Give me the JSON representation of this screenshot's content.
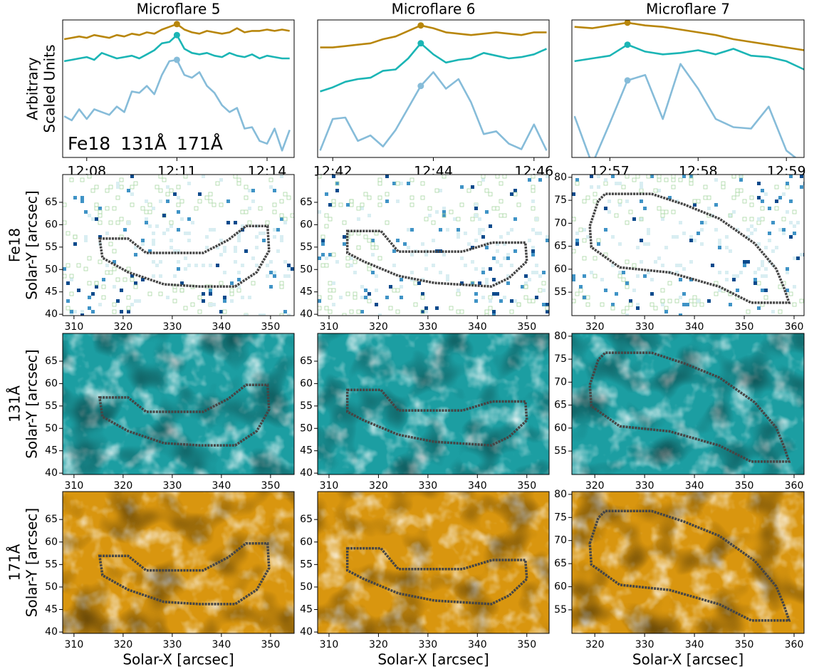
{
  "chart_data": [
    {
      "type": "line",
      "title": "Microflare 5",
      "ylabel": [
        "Arbitrary",
        "Scaled Units"
      ],
      "legend": true,
      "x": [
        727.25,
        727.5,
        727.75,
        728,
        728.25,
        728.5,
        728.75,
        729,
        729.25,
        729.5,
        729.75,
        730,
        730.25,
        730.5,
        730.75,
        731,
        731.25,
        731.5,
        731.75,
        732,
        732.25,
        732.5,
        732.75,
        733,
        733.25,
        733.5,
        733.75,
        734,
        734.25,
        734.5,
        734.75
      ],
      "xlim": [
        727.2,
        734.9
      ],
      "ylim": [
        0,
        1
      ],
      "xticks": [
        {
          "value": 728,
          "label": "12:08"
        },
        {
          "value": 731,
          "label": "12:11"
        },
        {
          "value": 734,
          "label": "12:14"
        }
      ],
      "series": [
        {
          "name": "Fe18",
          "color": "#86bcd9",
          "marker_index": 15,
          "values": [
            0.3,
            0.27,
            0.35,
            0.28,
            0.35,
            0.33,
            0.31,
            0.37,
            0.33,
            0.48,
            0.47,
            0.52,
            0.46,
            0.6,
            0.7,
            0.71,
            0.6,
            0.58,
            0.62,
            0.52,
            0.47,
            0.38,
            0.33,
            0.36,
            0.21,
            0.22,
            0.12,
            0.1,
            0.21,
            0.05,
            0.2
          ]
        },
        {
          "name": "131Å",
          "color": "#1bb5b5",
          "marker_index": 15,
          "values": [
            0.7,
            0.71,
            0.72,
            0.73,
            0.71,
            0.76,
            0.74,
            0.72,
            0.73,
            0.74,
            0.72,
            0.75,
            0.78,
            0.83,
            0.84,
            0.89,
            0.79,
            0.76,
            0.75,
            0.76,
            0.74,
            0.73,
            0.76,
            0.74,
            0.73,
            0.75,
            0.72,
            0.74,
            0.73,
            0.72,
            0.72
          ]
        },
        {
          "name": "171Å",
          "color": "#b8860b",
          "marker_index": 15,
          "values": [
            0.86,
            0.87,
            0.88,
            0.87,
            0.89,
            0.88,
            0.87,
            0.89,
            0.88,
            0.9,
            0.89,
            0.91,
            0.9,
            0.93,
            0.95,
            0.97,
            0.93,
            0.91,
            0.9,
            0.92,
            0.91,
            0.9,
            0.91,
            0.94,
            0.91,
            0.92,
            0.92,
            0.93,
            0.92,
            0.93,
            0.92
          ]
        }
      ]
    },
    {
      "type": "line",
      "title": "Microflare 6",
      "x": [
        761.75,
        762,
        762.25,
        762.5,
        762.75,
        763,
        763.25,
        763.5,
        763.75,
        764,
        764.25,
        764.5,
        764.75,
        765,
        765.25,
        765.5,
        765.75,
        766,
        766.25
      ],
      "xlim": [
        761.7,
        766.3
      ],
      "ylim": [
        0,
        1
      ],
      "xticks": [
        {
          "value": 762,
          "label": "12:42"
        },
        {
          "value": 764,
          "label": "12:44"
        },
        {
          "value": 766,
          "label": "12:46"
        }
      ],
      "series": [
        {
          "color": "#86bcd9",
          "marker_index": 8,
          "values": [
            0.05,
            0.28,
            0.29,
            0.12,
            0.16,
            0.08,
            0.2,
            0.36,
            0.52,
            0.62,
            0.5,
            0.57,
            0.4,
            0.17,
            0.19,
            0.1,
            0.06,
            0.24,
            0.05
          ]
        },
        {
          "color": "#1bb5b5",
          "marker_index": 8,
          "values": [
            0.48,
            0.51,
            0.55,
            0.57,
            0.58,
            0.63,
            0.64,
            0.72,
            0.83,
            0.75,
            0.69,
            0.71,
            0.72,
            0.76,
            0.74,
            0.72,
            0.73,
            0.75,
            0.79
          ]
        },
        {
          "color": "#b8860b",
          "marker_index": 8,
          "values": [
            0.8,
            0.8,
            0.81,
            0.82,
            0.83,
            0.86,
            0.88,
            0.92,
            0.96,
            0.94,
            0.91,
            0.9,
            0.89,
            0.9,
            0.91,
            0.9,
            0.89,
            0.91,
            0.91
          ]
        }
      ]
    },
    {
      "type": "line",
      "title": "Microflare 7",
      "x": [
        776.6,
        776.8,
        777,
        777.2,
        777.4,
        777.6,
        777.8,
        778,
        778.2,
        778.4,
        778.6,
        778.8,
        779,
        779.2
      ],
      "xlim": [
        776.57,
        779.2
      ],
      "ylim": [
        0,
        1
      ],
      "xticks": [
        {
          "value": 777,
          "label": "12:57"
        },
        {
          "value": 778,
          "label": "12:58"
        },
        {
          "value": 779,
          "label": "12:59"
        }
      ],
      "series": [
        {
          "color": "#86bcd9",
          "marker_index": 3,
          "values": [
            0.3,
            -0.05,
            0.25,
            0.56,
            0.6,
            0.28,
            0.68,
            0.5,
            0.28,
            0.22,
            0.21,
            0.37,
            0.05,
            -0.05
          ]
        },
        {
          "color": "#1bb5b5",
          "marker_index": 3,
          "values": [
            0.7,
            0.72,
            0.74,
            0.82,
            0.77,
            0.75,
            0.76,
            0.78,
            0.75,
            0.79,
            0.74,
            0.73,
            0.7,
            0.64
          ]
        },
        {
          "color": "#b8860b",
          "marker_index": 3,
          "values": [
            0.95,
            0.94,
            0.96,
            0.98,
            0.96,
            0.95,
            0.93,
            0.91,
            0.89,
            0.86,
            0.84,
            0.82,
            0.8,
            0.78
          ]
        }
      ]
    },
    {
      "type": "image",
      "cmap": "Blues",
      "ylabel": [
        "Fe18",
        "Solar-Y [arcsec]"
      ],
      "xlim": [
        307.7,
        354.8
      ],
      "ylim": [
        39.7,
        71.2
      ],
      "xticks": [
        310,
        320,
        330,
        340,
        350
      ],
      "yticks": [
        40,
        45,
        50,
        55,
        60,
        65
      ],
      "contour": {
        "x": [
          315.2,
          321,
          324.7,
          336.3,
          341.4,
          345,
          349.4,
          349.7,
          347.2,
          342.8,
          335.6,
          328.3,
          321,
          315.8
        ],
        "y": [
          56.9,
          56.9,
          53.7,
          53.7,
          56.6,
          59.7,
          59.7,
          54.2,
          49.4,
          46.2,
          46.2,
          46.7,
          49.4,
          52.6
        ]
      }
    },
    {
      "type": "image",
      "cmap": "Blues",
      "xlim": [
        307.7,
        354.5
      ],
      "ylim": [
        39.7,
        71.2
      ],
      "xticks": [
        310,
        320,
        330,
        340,
        350
      ],
      "yticks": [
        40,
        45,
        50,
        55,
        60,
        65
      ],
      "contour": {
        "x": [
          313.7,
          320.5,
          324,
          337,
          343,
          349.7,
          350,
          346.4,
          342.8,
          331.3,
          324,
          317,
          313.7
        ],
        "y": [
          58.6,
          58.6,
          54,
          54,
          56,
          56,
          51.8,
          48.1,
          46.2,
          47,
          48.6,
          51.8,
          53.7
        ]
      }
    },
    {
      "type": "image",
      "cmap": "Blues",
      "xlim": [
        315.4,
        362
      ],
      "ylim": [
        49.9,
        80.6
      ],
      "xticks": [
        320,
        330,
        340,
        350,
        360
      ],
      "yticks": [
        55,
        60,
        65,
        70,
        75,
        80
      ],
      "contour": {
        "x": [
          319,
          320.7,
          322.1,
          331.4,
          337.9,
          345,
          352.1,
          356.4,
          357.9,
          359,
          351.4,
          345,
          335,
          325,
          319.3
        ],
        "y": [
          69.4,
          74.9,
          76.4,
          76.4,
          74.1,
          71,
          65.6,
          60.1,
          56.2,
          52.7,
          52.7,
          56.2,
          59.3,
          60.4,
          64.8
        ]
      }
    },
    {
      "type": "image",
      "cmap": "teal",
      "ylabel": [
        "131Å",
        "Solar-Y [arcsec]"
      ],
      "xlim": [
        307.7,
        354.8
      ],
      "ylim": [
        39.7,
        71.2
      ],
      "xticks": [
        310,
        320,
        330,
        340,
        350
      ],
      "yticks": [
        40,
        45,
        50,
        55,
        60,
        65
      ],
      "contour": {
        "x": [
          315.2,
          321,
          324.7,
          336.3,
          341.4,
          345,
          349.4,
          349.7,
          347.2,
          342.8,
          335.6,
          328.3,
          321,
          315.8
        ],
        "y": [
          56.9,
          56.9,
          53.7,
          53.7,
          56.6,
          59.7,
          59.7,
          54.2,
          49.4,
          46.2,
          46.2,
          46.7,
          49.4,
          52.6
        ]
      }
    },
    {
      "type": "image",
      "cmap": "teal",
      "xlim": [
        307.7,
        354.5
      ],
      "ylim": [
        39.7,
        71.2
      ],
      "xticks": [
        310,
        320,
        330,
        340,
        350
      ],
      "yticks": [
        40,
        45,
        50,
        55,
        60,
        65
      ],
      "contour": {
        "x": [
          313.7,
          320.5,
          324,
          337,
          343,
          349.7,
          350,
          346.4,
          342.8,
          331.3,
          324,
          317,
          313.7
        ],
        "y": [
          58.6,
          58.6,
          54,
          54,
          56,
          56,
          51.8,
          48.1,
          46.2,
          47,
          48.6,
          51.8,
          53.7
        ]
      }
    },
    {
      "type": "image",
      "cmap": "teal",
      "xlim": [
        315.4,
        362
      ],
      "ylim": [
        49.9,
        80.6
      ],
      "xticks": [
        320,
        330,
        340,
        350,
        360
      ],
      "yticks": [
        55,
        60,
        65,
        70,
        75,
        80
      ],
      "contour": {
        "x": [
          319,
          320.7,
          322.1,
          331.4,
          337.9,
          345,
          352.1,
          356.4,
          357.9,
          359,
          351.4,
          345,
          335,
          325,
          319.3
        ],
        "y": [
          69.4,
          74.9,
          76.4,
          76.4,
          74.1,
          71,
          65.6,
          60.1,
          56.2,
          52.7,
          52.7,
          56.2,
          59.3,
          60.4,
          64.8
        ]
      }
    },
    {
      "type": "image",
      "cmap": "gold",
      "ylabel": [
        "171Å",
        "Solar-Y [arcsec]"
      ],
      "xlabel": "Solar-X [arcsec]",
      "xlim": [
        307.7,
        354.8
      ],
      "ylim": [
        39.7,
        71.2
      ],
      "xticks": [
        310,
        320,
        330,
        340,
        350
      ],
      "yticks": [
        40,
        45,
        50,
        55,
        60,
        65
      ],
      "contour": {
        "x": [
          315.2,
          321,
          324.7,
          336.3,
          341.4,
          345,
          349.4,
          349.7,
          347.2,
          342.8,
          335.6,
          328.3,
          321,
          315.8
        ],
        "y": [
          56.9,
          56.9,
          53.7,
          53.7,
          56.6,
          59.7,
          59.7,
          54.2,
          49.4,
          46.2,
          46.2,
          46.7,
          49.4,
          52.6
        ]
      }
    },
    {
      "type": "image",
      "cmap": "gold",
      "xlabel": "Solar-X [arcsec]",
      "xlim": [
        307.7,
        354.5
      ],
      "ylim": [
        39.7,
        71.2
      ],
      "xticks": [
        310,
        320,
        330,
        340,
        350
      ],
      "yticks": [
        40,
        45,
        50,
        55,
        60,
        65
      ],
      "contour": {
        "x": [
          313.7,
          320.5,
          324,
          337,
          343,
          349.7,
          350,
          346.4,
          342.8,
          331.3,
          324,
          317,
          313.7
        ],
        "y": [
          58.6,
          58.6,
          54,
          54,
          56,
          56,
          51.8,
          48.1,
          46.2,
          47,
          48.6,
          51.8,
          53.7
        ]
      }
    },
    {
      "type": "image",
      "cmap": "gold",
      "xlabel": "Solar-X [arcsec]",
      "xlim": [
        315.4,
        362
      ],
      "ylim": [
        49.9,
        80.6
      ],
      "xticks": [
        320,
        330,
        340,
        350,
        360
      ],
      "yticks": [
        55,
        60,
        65,
        70,
        75,
        80
      ],
      "contour": {
        "x": [
          319,
          320.7,
          322.1,
          331.4,
          337.9,
          345,
          352.1,
          356.4,
          357.9,
          359,
          351.4,
          345,
          335,
          325,
          319.3
        ],
        "y": [
          69.4,
          74.9,
          76.4,
          76.4,
          74.1,
          71,
          65.6,
          60.1,
          56.2,
          52.7,
          52.7,
          56.2,
          59.3,
          60.4,
          64.8
        ]
      }
    }
  ]
}
